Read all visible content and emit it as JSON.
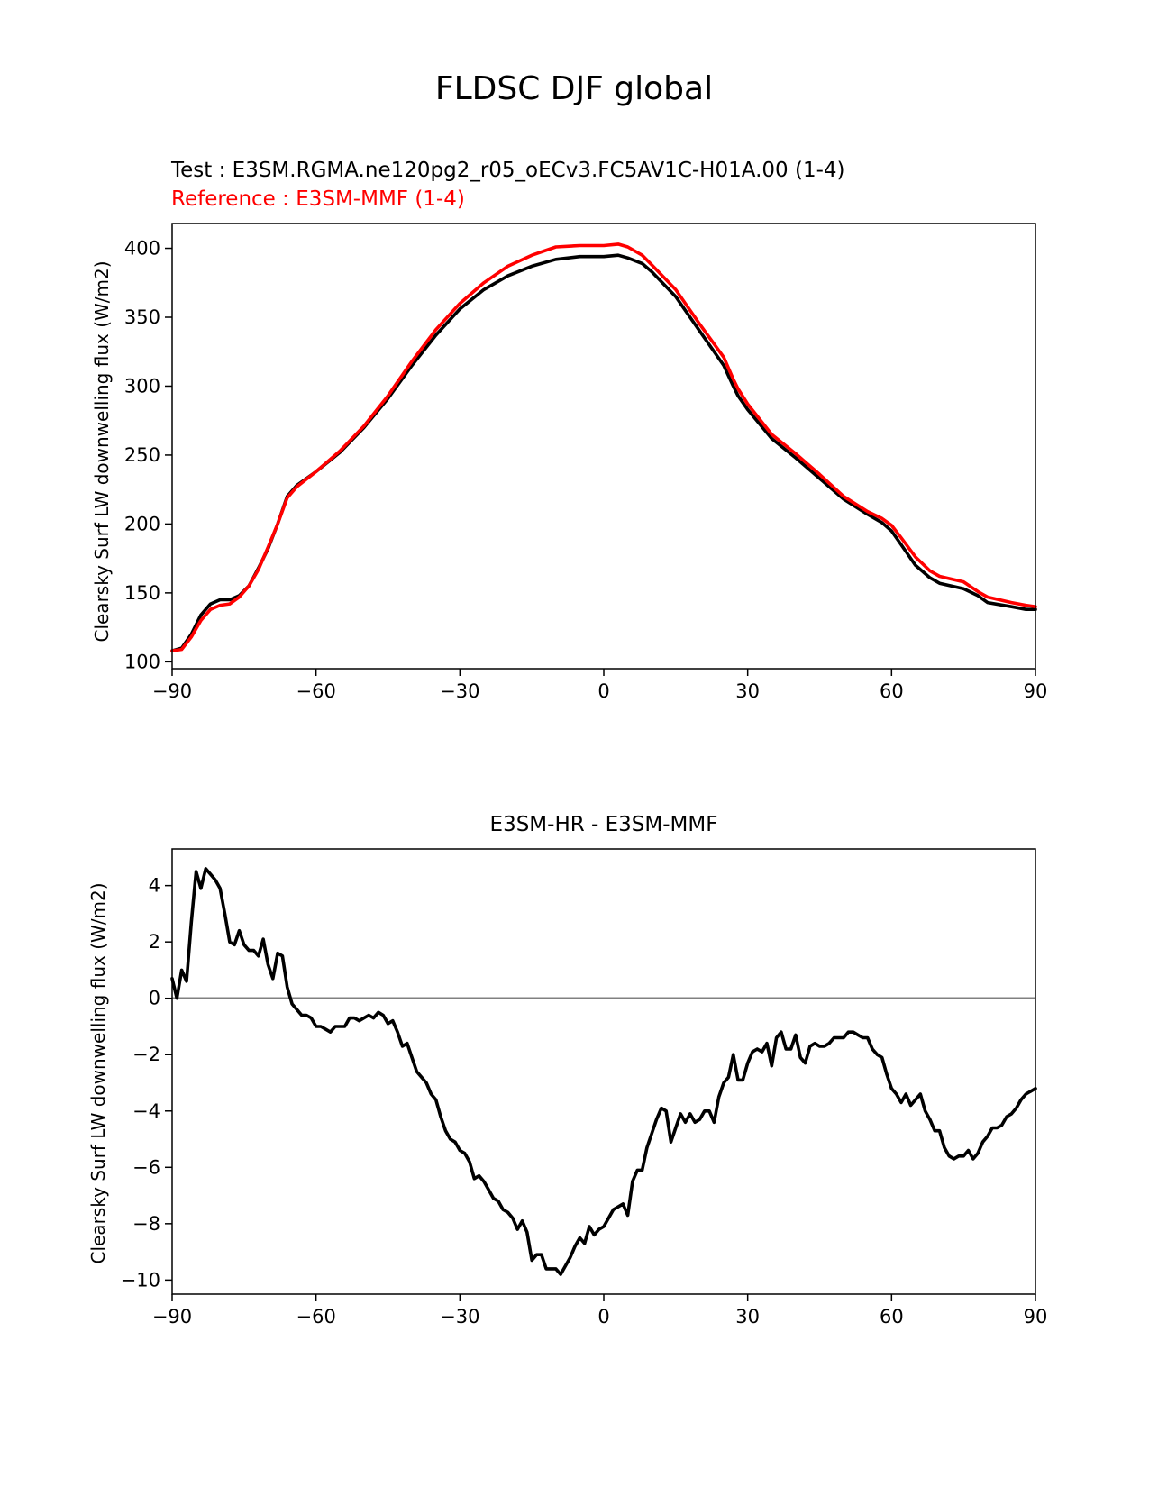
{
  "figure": {
    "title": "FLDSC DJF global"
  },
  "colors": {
    "test": "#000000",
    "reference": "#ff0000",
    "zero_line": "#808080"
  },
  "chart_data": [
    {
      "type": "line",
      "test_label": "Test : E3SM.RGMA.ne120pg2_r05_oECv3.FC5AV1C-H01A.00 (1-4)",
      "reference_label": "Reference : E3SM-MMF (1-4)",
      "xlabel": "",
      "ylabel": "Clearsky Surf LW downwelling flux (W/m2)",
      "xlim": [
        -90,
        90
      ],
      "ylim": [
        95,
        418
      ],
      "xticks": [
        -90,
        -60,
        -30,
        0,
        30,
        60,
        90
      ],
      "xtick_labels": [
        "−90",
        "−60",
        "−30",
        "0",
        "30",
        "60",
        "90"
      ],
      "yticks": [
        100,
        150,
        200,
        250,
        300,
        350,
        400
      ],
      "ytick_labels": [
        "100",
        "150",
        "200",
        "250",
        "300",
        "350",
        "400"
      ],
      "series": [
        {
          "name": "Test",
          "x": [
            -90,
            -88,
            -86,
            -84,
            -82,
            -80,
            -78,
            -76,
            -74,
            -72,
            -70,
            -68,
            -66,
            -64,
            -60,
            -55,
            -50,
            -45,
            -40,
            -35,
            -30,
            -25,
            -20,
            -15,
            -10,
            -5,
            0,
            3,
            5,
            8,
            10,
            15,
            20,
            25,
            27,
            28,
            30,
            35,
            40,
            45,
            50,
            55,
            58,
            60,
            62,
            65,
            68,
            70,
            75,
            78,
            80,
            85,
            88,
            90
          ],
          "y": [
            108,
            110,
            120,
            134,
            142,
            145,
            145,
            148,
            155,
            168,
            182,
            200,
            220,
            228,
            238,
            252,
            270,
            291,
            315,
            337,
            356,
            370,
            380,
            387,
            392,
            394,
            394,
            395,
            393,
            389,
            383,
            365,
            340,
            315,
            300,
            293,
            283,
            262,
            248,
            233,
            218,
            207,
            201,
            195,
            185,
            170,
            161,
            157,
            153,
            148,
            143,
            140,
            138,
            138
          ]
        },
        {
          "name": "Reference",
          "x": [
            -90,
            -88,
            -86,
            -84,
            -82,
            -80,
            -78,
            -76,
            -74,
            -72,
            -70,
            -68,
            -66,
            -64,
            -60,
            -55,
            -50,
            -45,
            -40,
            -35,
            -30,
            -25,
            -20,
            -15,
            -10,
            -5,
            0,
            3,
            5,
            8,
            10,
            15,
            20,
            25,
            27,
            28,
            30,
            35,
            40,
            45,
            50,
            55,
            58,
            60,
            62,
            65,
            68,
            70,
            75,
            78,
            80,
            85,
            88,
            90
          ],
          "y": [
            108,
            109,
            118,
            130,
            138,
            141,
            142,
            147,
            155,
            167,
            183,
            200,
            219,
            227,
            238,
            253,
            271,
            293,
            318,
            341,
            360,
            375,
            387,
            395,
            401,
            402,
            402,
            403,
            401,
            395,
            388,
            370,
            345,
            321,
            305,
            298,
            287,
            265,
            251,
            236,
            220,
            209,
            204,
            199,
            190,
            176,
            166,
            162,
            158,
            151,
            147,
            143,
            141,
            140
          ]
        }
      ]
    },
    {
      "type": "line",
      "title": "E3SM-HR - E3SM-MMF",
      "xlabel": "",
      "ylabel": "Clearsky Surf LW downwelling flux (W/m2)",
      "xlim": [
        -90,
        90
      ],
      "ylim": [
        -10.5,
        5.3
      ],
      "xticks": [
        -90,
        -60,
        -30,
        0,
        30,
        60,
        90
      ],
      "xtick_labels": [
        "−90",
        "−60",
        "−30",
        "0",
        "30",
        "60",
        "90"
      ],
      "yticks": [
        4,
        2,
        0,
        -2,
        -4,
        -6,
        -8,
        -10
      ],
      "ytick_labels": [
        "4",
        "2",
        "0",
        "−2",
        "−4",
        "−6",
        "−8",
        "−10"
      ],
      "hline": 0,
      "series": [
        {
          "name": "E3SM-HR - E3SM-MMF",
          "x": [
            -90,
            -89,
            -88,
            -87,
            -86,
            -85,
            -84,
            -83,
            -82,
            -81,
            -80,
            -79,
            -78,
            -77,
            -76,
            -75,
            -74,
            -73,
            -72,
            -71,
            -70,
            -69,
            -68,
            -67,
            -66,
            -65,
            -64,
            -63,
            -62,
            -61,
            -60,
            -59,
            -58,
            -57,
            -56,
            -55,
            -54,
            -53,
            -52,
            -51,
            -50,
            -49,
            -48,
            -47,
            -46,
            -45,
            -44,
            -43,
            -42,
            -41,
            -40,
            -39,
            -38,
            -37,
            -36,
            -35,
            -34,
            -33,
            -32,
            -31,
            -30,
            -29,
            -28,
            -27,
            -26,
            -25,
            -24,
            -23,
            -22,
            -21,
            -20,
            -19,
            -18,
            -17,
            -16,
            -15,
            -14,
            -13,
            -12,
            -11,
            -10,
            -9,
            -8,
            -7,
            -6,
            -5,
            -4,
            -3,
            -2,
            -1,
            0,
            1,
            2,
            3,
            4,
            5,
            6,
            7,
            8,
            9,
            10,
            11,
            12,
            13,
            14,
            15,
            16,
            17,
            18,
            19,
            20,
            21,
            22,
            23,
            24,
            25,
            26,
            27,
            28,
            29,
            30,
            31,
            32,
            33,
            34,
            35,
            36,
            37,
            38,
            39,
            40,
            41,
            42,
            43,
            44,
            45,
            46,
            47,
            48,
            49,
            50,
            51,
            52,
            53,
            54,
            55,
            56,
            57,
            58,
            59,
            60,
            61,
            62,
            63,
            64,
            65,
            66,
            67,
            68,
            69,
            70,
            71,
            72,
            73,
            74,
            75,
            76,
            77,
            78,
            79,
            80,
            81,
            82,
            83,
            84,
            85,
            86,
            87,
            88,
            89,
            90
          ],
          "y": [
            0.7,
            0.0,
            1.0,
            0.6,
            2.7,
            4.5,
            3.9,
            4.6,
            4.4,
            4.2,
            3.9,
            3.0,
            2.0,
            1.9,
            2.4,
            1.9,
            1.7,
            1.7,
            1.5,
            2.1,
            1.2,
            0.7,
            1.6,
            1.5,
            0.4,
            -0.2,
            -0.4,
            -0.6,
            -0.6,
            -0.7,
            -1.0,
            -1.0,
            -1.1,
            -1.2,
            -1.0,
            -1.0,
            -1.0,
            -0.7,
            -0.7,
            -0.8,
            -0.7,
            -0.6,
            -0.7,
            -0.5,
            -0.6,
            -0.9,
            -0.8,
            -1.2,
            -1.7,
            -1.6,
            -2.1,
            -2.6,
            -2.8,
            -3.0,
            -3.4,
            -3.6,
            -4.2,
            -4.7,
            -5.0,
            -5.1,
            -5.4,
            -5.5,
            -5.8,
            -6.4,
            -6.3,
            -6.5,
            -6.8,
            -7.1,
            -7.2,
            -7.5,
            -7.6,
            -7.8,
            -8.2,
            -7.9,
            -8.3,
            -9.3,
            -9.1,
            -9.1,
            -9.6,
            -9.6,
            -9.6,
            -9.8,
            -9.5,
            -9.2,
            -8.8,
            -8.5,
            -8.7,
            -8.1,
            -8.4,
            -8.2,
            -8.1,
            -7.8,
            -7.5,
            -7.4,
            -7.3,
            -7.7,
            -6.5,
            -6.1,
            -6.1,
            -5.3,
            -4.8,
            -4.3,
            -3.9,
            -4.0,
            -5.1,
            -4.6,
            -4.1,
            -4.4,
            -4.1,
            -4.4,
            -4.3,
            -4.0,
            -4.0,
            -4.4,
            -3.5,
            -3.0,
            -2.8,
            -2.0,
            -2.9,
            -2.9,
            -2.3,
            -1.9,
            -1.8,
            -1.9,
            -1.6,
            -2.4,
            -1.4,
            -1.2,
            -1.8,
            -1.8,
            -1.3,
            -2.1,
            -2.3,
            -1.7,
            -1.6,
            -1.7,
            -1.7,
            -1.6,
            -1.4,
            -1.4,
            -1.4,
            -1.2,
            -1.2,
            -1.3,
            -1.4,
            -1.4,
            -1.8,
            -2.0,
            -2.1,
            -2.7,
            -3.2,
            -3.4,
            -3.7,
            -3.4,
            -3.8,
            -3.6,
            -3.4,
            -4.0,
            -4.3,
            -4.7,
            -4.7,
            -5.3,
            -5.6,
            -5.7,
            -5.6,
            -5.6,
            -5.4,
            -5.7,
            -5.5,
            -5.1,
            -4.9,
            -4.6,
            -4.6,
            -4.5,
            -4.2,
            -4.1,
            -3.9,
            -3.6,
            -3.4,
            -3.3,
            -3.2
          ]
        }
      ]
    }
  ]
}
